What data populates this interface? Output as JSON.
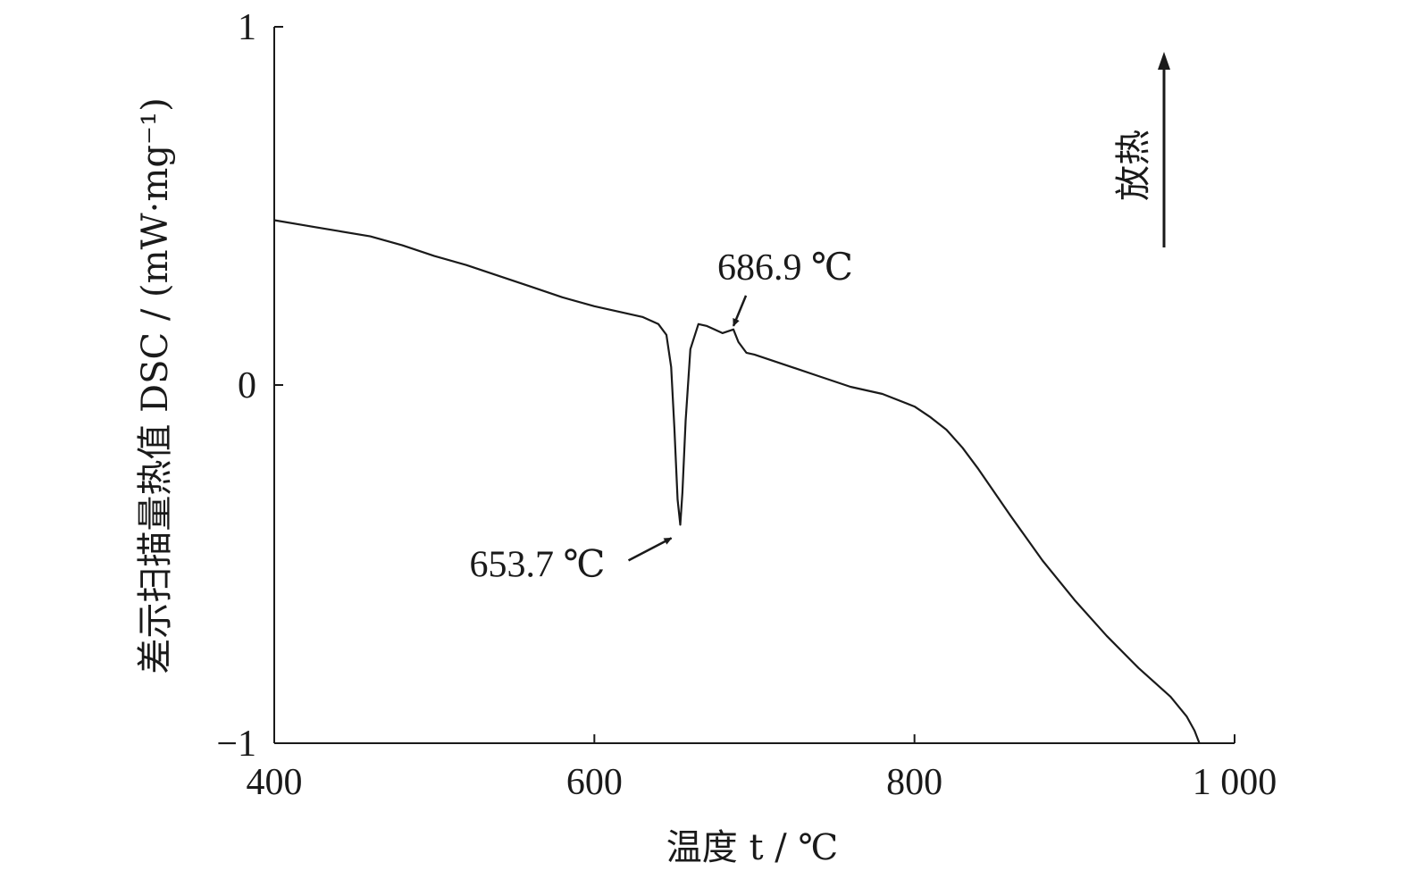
{
  "chart_data": {
    "type": "line",
    "xlabel": "温度 t / ℃",
    "ylabel": "差示扫描量热值 DSC / (mW·mg⁻¹)",
    "xlim": [
      400,
      1000
    ],
    "ylim": [
      -1,
      1
    ],
    "x_ticks": [
      400,
      600,
      800,
      1000
    ],
    "x_tick_labels": [
      "400",
      "600",
      "800",
      "1 000"
    ],
    "y_ticks": [
      -1,
      0,
      1
    ],
    "y_tick_labels": [
      "−1",
      "0",
      "1"
    ],
    "grid": false,
    "series": [
      {
        "x": [
          400,
          420,
          440,
          460,
          480,
          500,
          520,
          540,
          560,
          580,
          600,
          620,
          630,
          640,
          645,
          648,
          650,
          652,
          653.7,
          655,
          657,
          660,
          665,
          670,
          675,
          680,
          686.9,
          690,
          695,
          700,
          720,
          740,
          760,
          780,
          800,
          810,
          820,
          830,
          840,
          860,
          880,
          900,
          920,
          940,
          960,
          970,
          975,
          978
        ],
        "y": [
          0.46,
          0.445,
          0.43,
          0.415,
          0.39,
          0.36,
          0.335,
          0.305,
          0.275,
          0.245,
          0.22,
          0.2,
          0.19,
          0.17,
          0.14,
          0.05,
          -0.12,
          -0.32,
          -0.39,
          -0.3,
          -0.1,
          0.1,
          0.17,
          0.165,
          0.155,
          0.145,
          0.155,
          0.12,
          0.09,
          0.085,
          0.055,
          0.025,
          -0.005,
          -0.025,
          -0.06,
          -0.09,
          -0.125,
          -0.175,
          -0.235,
          -0.365,
          -0.49,
          -0.6,
          -0.7,
          -0.79,
          -0.87,
          -0.925,
          -0.965,
          -1.0
        ]
      }
    ],
    "annotations": [
      {
        "text": "686.9 ℃",
        "x": 686.9,
        "y": 0.155
      },
      {
        "text": "653.7 ℃",
        "x": 653.7,
        "y": -0.39
      }
    ],
    "direction_indicator": {
      "text": "放热",
      "direction": "up"
    }
  }
}
